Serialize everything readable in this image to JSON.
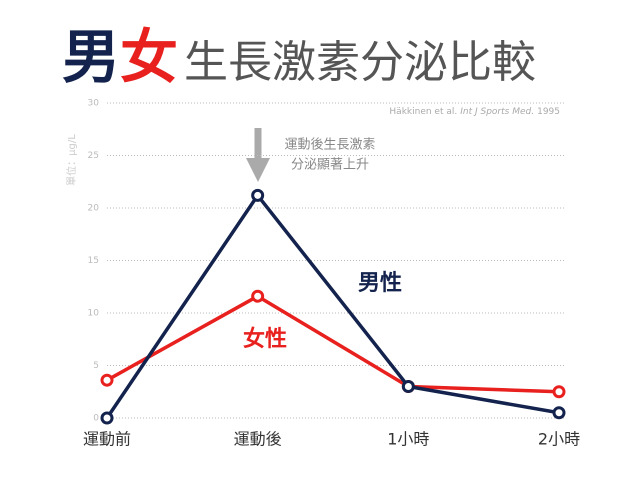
{
  "chart_data": {
    "type": "line",
    "title_parts": [
      {
        "text": "男",
        "color": "#13234d"
      },
      {
        "text": "女",
        "color": "#e8201e"
      },
      {
        "text": "生長激素分泌比較",
        "color": "#555555"
      }
    ],
    "source_parts": [
      {
        "text": "Häkkinen et al.",
        "italic": false
      },
      {
        "text": "Int J Sports Med.",
        "italic": true
      },
      {
        "text": "1995",
        "italic": false
      }
    ],
    "y_label": "單位：μg/L",
    "annotation": [
      "運動後生長激素",
      "分泌顯著上升"
    ],
    "categories": [
      "運動前",
      "運動後",
      "1小時",
      "2小時"
    ],
    "series": [
      {
        "name": "男性",
        "color": "#13234d",
        "values": [
          0,
          21.2,
          3.0,
          0.5
        ]
      },
      {
        "name": "女性",
        "color": "#e8201e",
        "values": [
          3.6,
          11.6,
          3.0,
          2.5
        ]
      }
    ],
    "ylim": [
      0,
      30
    ],
    "yticks": [
      0,
      5,
      10,
      15,
      20,
      25,
      30
    ],
    "grid": true
  }
}
